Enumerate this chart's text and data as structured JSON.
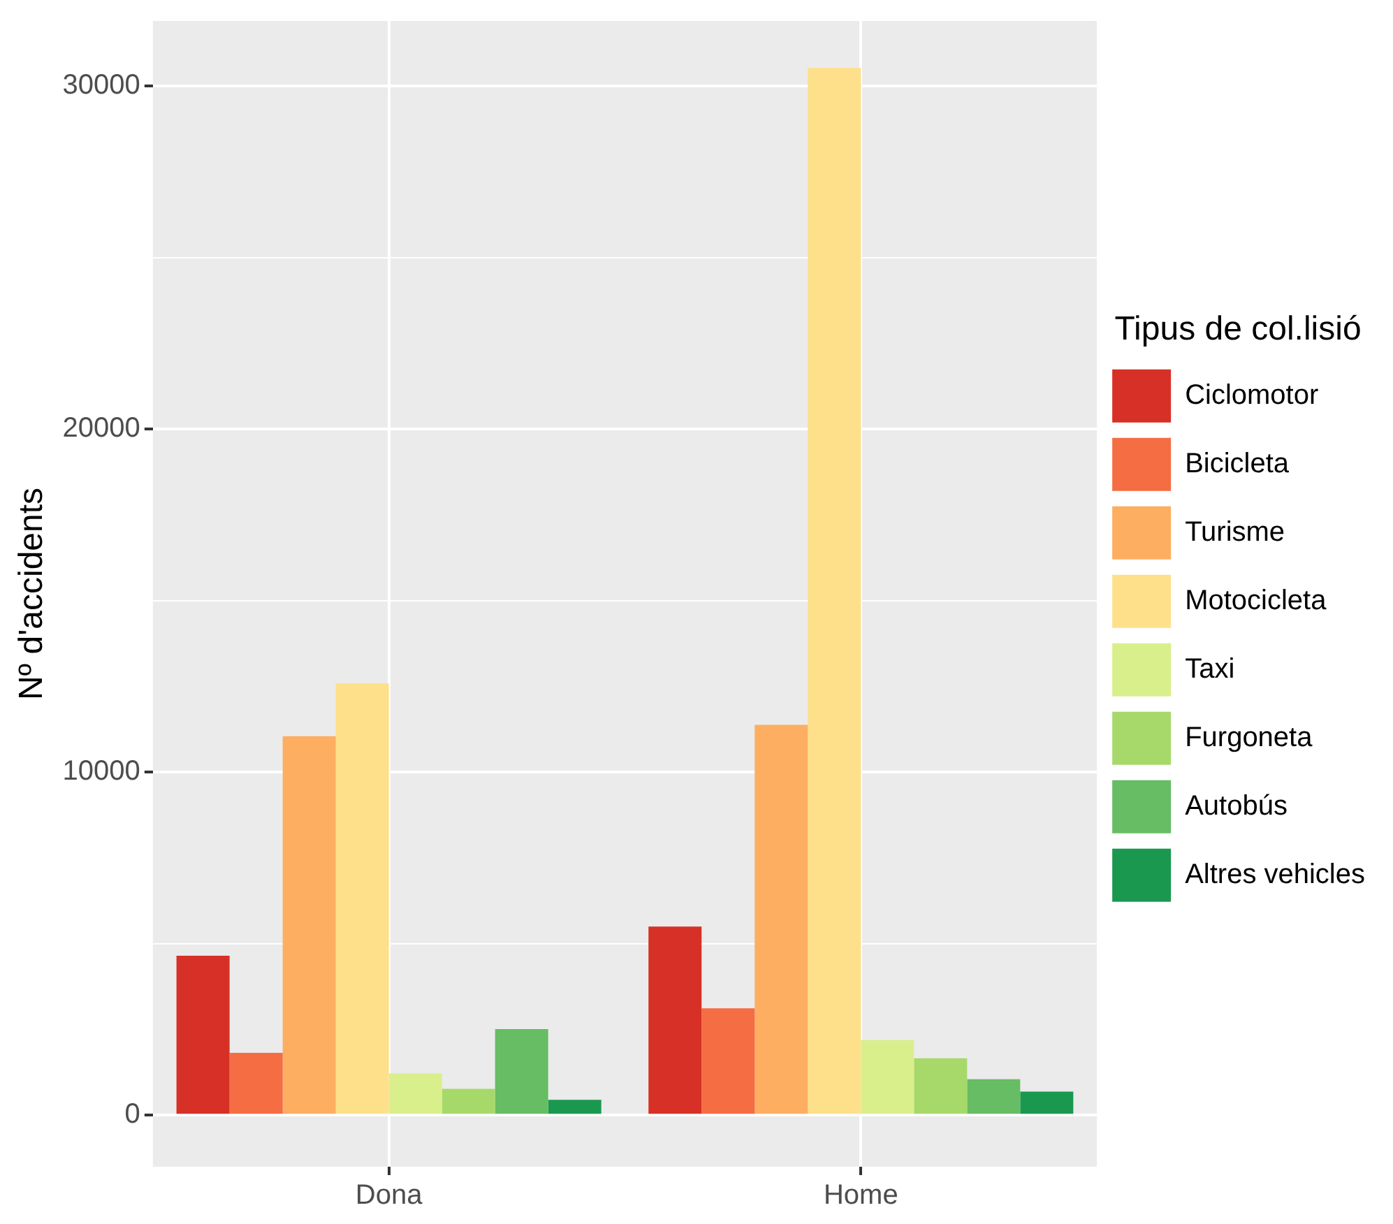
{
  "chart_data": {
    "type": "bar",
    "ylabel": "Nº d'accidents",
    "legend_title": "Tipus de col.lisió",
    "legend": "right",
    "grid": true,
    "categories": [
      "Dona",
      "Home"
    ],
    "series": [
      {
        "name": "Ciclomotor",
        "color": "#d73027",
        "values": [
          4650,
          5500
        ]
      },
      {
        "name": "Bicicleta",
        "color": "#f46d43",
        "values": [
          1820,
          3120
        ]
      },
      {
        "name": "Turisme",
        "color": "#fdae61",
        "values": [
          11050,
          11380
        ]
      },
      {
        "name": "Motocicleta",
        "color": "#fee08b",
        "values": [
          12590,
          30530
        ]
      },
      {
        "name": "Taxi",
        "color": "#d9ef8b",
        "values": [
          1220,
          2190
        ]
      },
      {
        "name": "Furgoneta",
        "color": "#a6d96a",
        "values": [
          770,
          1660
        ]
      },
      {
        "name": "Autobús",
        "color": "#66bd63",
        "values": [
          2510,
          1050
        ]
      },
      {
        "name": "Altres vehicles",
        "color": "#1a9850",
        "values": [
          450,
          690
        ]
      }
    ],
    "ylim": [
      -1500,
      31900
    ],
    "yticks": [
      0,
      {
        "value": 5000,
        "label": null
      },
      10000,
      {
        "value": 15000,
        "label": null
      },
      20000,
      {
        "value": 25000,
        "label": null
      },
      30000
    ]
  }
}
